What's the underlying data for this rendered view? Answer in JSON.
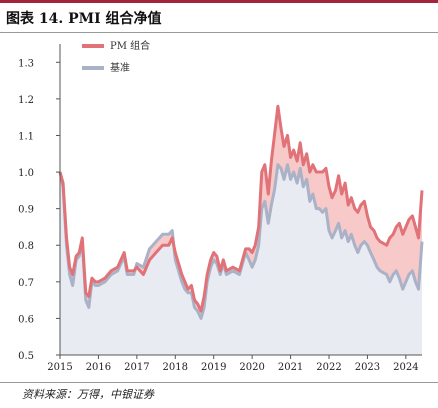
{
  "header": {
    "title": "图表 14. PMI 组合净值",
    "accent_color": "#a3243b"
  },
  "footer": {
    "source": "资料来源：万得，中银证券"
  },
  "chart_data": {
    "type": "area",
    "title": "图表 14. PMI 组合净值",
    "xlabel": "",
    "ylabel": "",
    "x_ticks": [
      "2015",
      "2016",
      "2017",
      "2018",
      "2019",
      "2020",
      "2021",
      "2022",
      "2023",
      "2024"
    ],
    "y_ticks": [
      "0.5",
      "0.6",
      "0.7",
      "0.8",
      "0.9",
      "1.0",
      "1.1",
      "1.2",
      "1.3"
    ],
    "xlim": [
      2015.0,
      2024.42
    ],
    "ylim": [
      0.5,
      1.35
    ],
    "legend_position": "top-left",
    "fill_between_color": "#f7c9c9",
    "base_fill_color": "#e9ebf3",
    "series": [
      {
        "name": "PM 组合",
        "color": "#e07278",
        "points": [
          [
            2015.0,
            1.0
          ],
          [
            2015.08,
            0.97
          ],
          [
            2015.17,
            0.82
          ],
          [
            2015.25,
            0.74
          ],
          [
            2015.33,
            0.72
          ],
          [
            2015.42,
            0.77
          ],
          [
            2015.5,
            0.78
          ],
          [
            2015.58,
            0.82
          ],
          [
            2015.67,
            0.67
          ],
          [
            2015.75,
            0.66
          ],
          [
            2015.83,
            0.71
          ],
          [
            2015.92,
            0.7
          ],
          [
            2016.0,
            0.7
          ],
          [
            2016.17,
            0.71
          ],
          [
            2016.33,
            0.73
          ],
          [
            2016.5,
            0.74
          ],
          [
            2016.67,
            0.78
          ],
          [
            2016.75,
            0.73
          ],
          [
            2016.92,
            0.73
          ],
          [
            2017.0,
            0.74
          ],
          [
            2017.17,
            0.72
          ],
          [
            2017.33,
            0.76
          ],
          [
            2017.5,
            0.78
          ],
          [
            2017.67,
            0.8
          ],
          [
            2017.83,
            0.8
          ],
          [
            2017.92,
            0.82
          ],
          [
            2018.0,
            0.78
          ],
          [
            2018.17,
            0.72
          ],
          [
            2018.25,
            0.7
          ],
          [
            2018.33,
            0.68
          ],
          [
            2018.42,
            0.69
          ],
          [
            2018.5,
            0.65
          ],
          [
            2018.58,
            0.64
          ],
          [
            2018.67,
            0.62
          ],
          [
            2018.75,
            0.66
          ],
          [
            2018.83,
            0.72
          ],
          [
            2018.92,
            0.76
          ],
          [
            2019.0,
            0.78
          ],
          [
            2019.08,
            0.77
          ],
          [
            2019.17,
            0.73
          ],
          [
            2019.25,
            0.76
          ],
          [
            2019.33,
            0.73
          ],
          [
            2019.5,
            0.74
          ],
          [
            2019.67,
            0.73
          ],
          [
            2019.83,
            0.79
          ],
          [
            2019.92,
            0.79
          ],
          [
            2020.0,
            0.78
          ],
          [
            2020.08,
            0.8
          ],
          [
            2020.17,
            0.85
          ],
          [
            2020.25,
            1.0
          ],
          [
            2020.33,
            1.02
          ],
          [
            2020.42,
            0.94
          ],
          [
            2020.5,
            1.03
          ],
          [
            2020.58,
            1.1
          ],
          [
            2020.67,
            1.18
          ],
          [
            2020.75,
            1.12
          ],
          [
            2020.83,
            1.07
          ],
          [
            2020.92,
            1.1
          ],
          [
            2021.0,
            1.04
          ],
          [
            2021.08,
            1.06
          ],
          [
            2021.17,
            1.03
          ],
          [
            2021.25,
            1.08
          ],
          [
            2021.33,
            1.02
          ],
          [
            2021.42,
            1.05
          ],
          [
            2021.5,
            1.0
          ],
          [
            2021.58,
            1.02
          ],
          [
            2021.67,
            1.0
          ],
          [
            2021.75,
            1.0
          ],
          [
            2021.83,
            1.0
          ],
          [
            2021.92,
            1.01
          ],
          [
            2022.0,
            0.96
          ],
          [
            2022.08,
            0.93
          ],
          [
            2022.17,
            0.95
          ],
          [
            2022.25,
            0.99
          ],
          [
            2022.33,
            0.94
          ],
          [
            2022.42,
            0.97
          ],
          [
            2022.5,
            0.91
          ],
          [
            2022.58,
            0.93
          ],
          [
            2022.67,
            0.9
          ],
          [
            2022.75,
            0.89
          ],
          [
            2022.83,
            0.91
          ],
          [
            2022.92,
            0.92
          ],
          [
            2023.0,
            0.88
          ],
          [
            2023.08,
            0.85
          ],
          [
            2023.17,
            0.84
          ],
          [
            2023.25,
            0.82
          ],
          [
            2023.33,
            0.81
          ],
          [
            2023.5,
            0.8
          ],
          [
            2023.58,
            0.82
          ],
          [
            2023.67,
            0.83
          ],
          [
            2023.75,
            0.85
          ],
          [
            2023.83,
            0.86
          ],
          [
            2023.92,
            0.83
          ],
          [
            2024.0,
            0.85
          ],
          [
            2024.08,
            0.87
          ],
          [
            2024.17,
            0.88
          ],
          [
            2024.25,
            0.85
          ],
          [
            2024.33,
            0.82
          ],
          [
            2024.42,
            0.95
          ]
        ]
      },
      {
        "name": "基准",
        "color": "#a9b2c6",
        "points": [
          [
            2015.0,
            1.0
          ],
          [
            2015.08,
            0.96
          ],
          [
            2015.17,
            0.8
          ],
          [
            2015.25,
            0.72
          ],
          [
            2015.33,
            0.69
          ],
          [
            2015.42,
            0.76
          ],
          [
            2015.5,
            0.77
          ],
          [
            2015.58,
            0.81
          ],
          [
            2015.67,
            0.65
          ],
          [
            2015.75,
            0.63
          ],
          [
            2015.83,
            0.7
          ],
          [
            2015.92,
            0.69
          ],
          [
            2016.0,
            0.69
          ],
          [
            2016.17,
            0.7
          ],
          [
            2016.33,
            0.72
          ],
          [
            2016.5,
            0.73
          ],
          [
            2016.67,
            0.77
          ],
          [
            2016.75,
            0.72
          ],
          [
            2016.92,
            0.72
          ],
          [
            2017.0,
            0.75
          ],
          [
            2017.17,
            0.74
          ],
          [
            2017.33,
            0.79
          ],
          [
            2017.5,
            0.81
          ],
          [
            2017.67,
            0.83
          ],
          [
            2017.83,
            0.83
          ],
          [
            2017.92,
            0.84
          ],
          [
            2018.0,
            0.76
          ],
          [
            2018.17,
            0.7
          ],
          [
            2018.25,
            0.68
          ],
          [
            2018.33,
            0.67
          ],
          [
            2018.42,
            0.67
          ],
          [
            2018.5,
            0.63
          ],
          [
            2018.58,
            0.62
          ],
          [
            2018.67,
            0.6
          ],
          [
            2018.75,
            0.63
          ],
          [
            2018.83,
            0.7
          ],
          [
            2018.92,
            0.74
          ],
          [
            2019.0,
            0.76
          ],
          [
            2019.08,
            0.75
          ],
          [
            2019.17,
            0.72
          ],
          [
            2019.25,
            0.75
          ],
          [
            2019.33,
            0.72
          ],
          [
            2019.5,
            0.73
          ],
          [
            2019.67,
            0.72
          ],
          [
            2019.83,
            0.78
          ],
          [
            2019.92,
            0.76
          ],
          [
            2020.0,
            0.74
          ],
          [
            2020.08,
            0.76
          ],
          [
            2020.17,
            0.8
          ],
          [
            2020.25,
            0.9
          ],
          [
            2020.33,
            0.92
          ],
          [
            2020.42,
            0.86
          ],
          [
            2020.5,
            0.91
          ],
          [
            2020.58,
            0.95
          ],
          [
            2020.67,
            1.02
          ],
          [
            2020.75,
            1.01
          ],
          [
            2020.83,
            0.98
          ],
          [
            2020.92,
            1.02
          ],
          [
            2021.0,
            0.98
          ],
          [
            2021.08,
            1.0
          ],
          [
            2021.17,
            0.97
          ],
          [
            2021.25,
            1.01
          ],
          [
            2021.33,
            0.96
          ],
          [
            2021.42,
            0.98
          ],
          [
            2021.5,
            0.92
          ],
          [
            2021.58,
            0.94
          ],
          [
            2021.67,
            0.9
          ],
          [
            2021.75,
            0.9
          ],
          [
            2021.83,
            0.89
          ],
          [
            2021.92,
            0.9
          ],
          [
            2022.0,
            0.84
          ],
          [
            2022.08,
            0.82
          ],
          [
            2022.17,
            0.84
          ],
          [
            2022.25,
            0.86
          ],
          [
            2022.33,
            0.82
          ],
          [
            2022.42,
            0.84
          ],
          [
            2022.5,
            0.81
          ],
          [
            2022.58,
            0.83
          ],
          [
            2022.67,
            0.8
          ],
          [
            2022.75,
            0.78
          ],
          [
            2022.83,
            0.8
          ],
          [
            2022.92,
            0.81
          ],
          [
            2023.0,
            0.8
          ],
          [
            2023.08,
            0.78
          ],
          [
            2023.17,
            0.76
          ],
          [
            2023.25,
            0.74
          ],
          [
            2023.33,
            0.73
          ],
          [
            2023.5,
            0.72
          ],
          [
            2023.58,
            0.7
          ],
          [
            2023.67,
            0.72
          ],
          [
            2023.75,
            0.73
          ],
          [
            2023.83,
            0.71
          ],
          [
            2023.92,
            0.68
          ],
          [
            2024.0,
            0.7
          ],
          [
            2024.08,
            0.72
          ],
          [
            2024.17,
            0.73
          ],
          [
            2024.25,
            0.7
          ],
          [
            2024.33,
            0.68
          ],
          [
            2024.42,
            0.81
          ]
        ]
      }
    ]
  }
}
